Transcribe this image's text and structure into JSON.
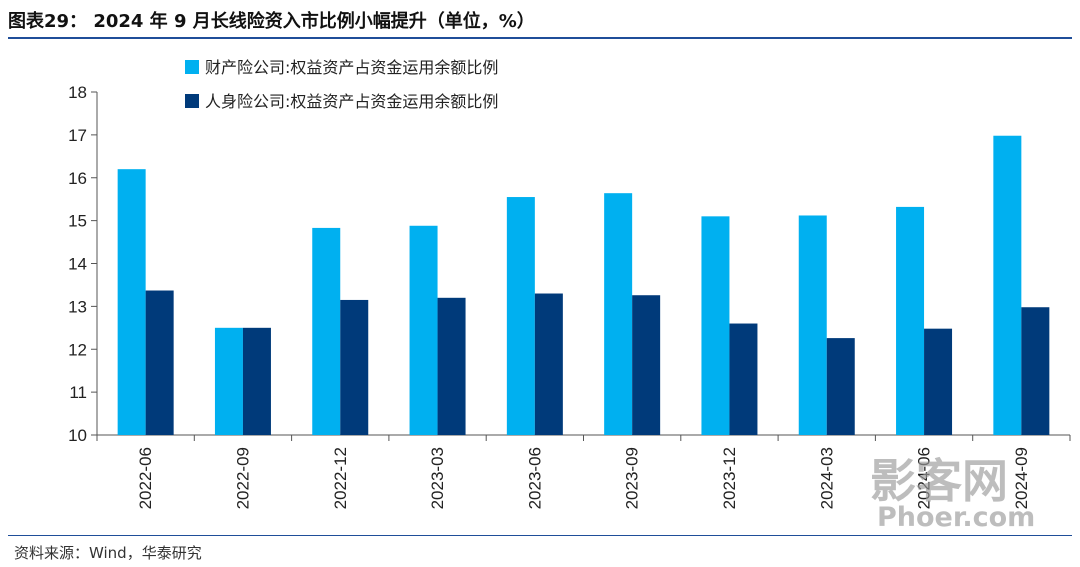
{
  "header": {
    "title": "图表29： 2024 年 9 月长线险资入市比例小幅提升（单位，%）"
  },
  "footer": {
    "source": "资料来源：Wind，华泰研究"
  },
  "watermark": {
    "line1": "影客网",
    "line2": "Phoer.com"
  },
  "colors": {
    "series1": "#00b0f0",
    "series2": "#003a7a",
    "rule": "#1f4e99"
  },
  "chart_data": {
    "type": "bar",
    "categories": [
      "2022-06",
      "2022-09",
      "2022-12",
      "2023-03",
      "2023-06",
      "2023-09",
      "2023-12",
      "2024-03",
      "2024-06",
      "2024-09"
    ],
    "series": [
      {
        "name": "财产险公司:权益资产占资金运用余额比例",
        "values": [
          16.2,
          12.5,
          14.83,
          14.88,
          15.55,
          15.64,
          15.1,
          15.12,
          15.32,
          16.98
        ]
      },
      {
        "name": "人身险公司:权益资产占资金运用余额比例",
        "values": [
          13.37,
          12.5,
          13.15,
          13.2,
          13.3,
          13.26,
          12.6,
          12.26,
          12.48,
          12.98
        ]
      }
    ],
    "ylim": [
      10,
      18
    ],
    "yticks": [
      "10",
      "11",
      "12",
      "13",
      "14",
      "15",
      "16",
      "17",
      "18"
    ],
    "legend_position": "top-left",
    "grid": false
  }
}
